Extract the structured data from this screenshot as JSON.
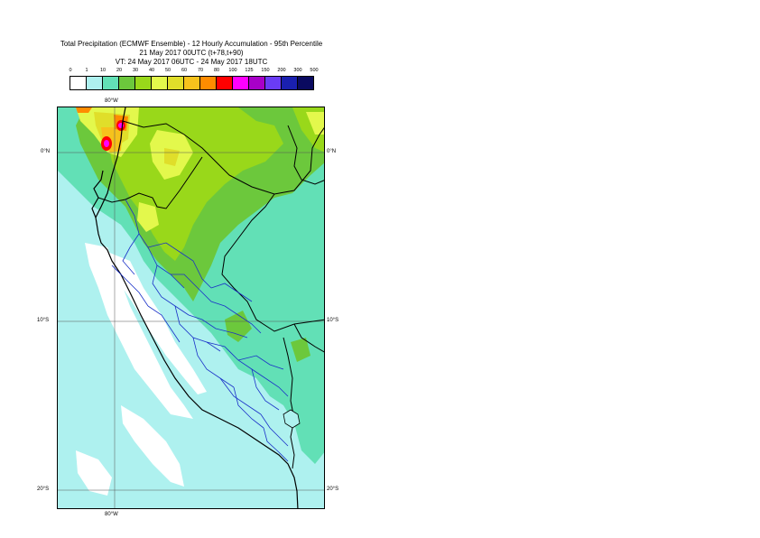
{
  "title": {
    "line1": "Total Precipitation (ECMWF Ensemble) - 12 Hourly Accumulation - 95th Percentile",
    "line2": "21 May 2017 00UTC (t+78,t+90)",
    "line3": "VT: 24 May 2017 06UTC - 24 May 2017 18UTC"
  },
  "legend": {
    "labels": [
      "0",
      "1",
      "10",
      "20",
      "30",
      "40",
      "50",
      "60",
      "70",
      "80",
      "100",
      "125",
      "150",
      "200",
      "300",
      "500"
    ],
    "colors": [
      "#ffffff",
      "#aef1ef",
      "#62e0b6",
      "#6cc83c",
      "#99d81a",
      "#e3f84c",
      "#e0de2a",
      "#f6c21c",
      "#ff8c00",
      "#ff0000",
      "#ff00ff",
      "#a800c8",
      "#6a3cf5",
      "#1a20b0",
      "#0a0a60"
    ]
  },
  "axes": {
    "lon_top": "80°W",
    "lon_bottom": "80°W",
    "lat_labels": [
      {
        "left": "0°N",
        "right": "0°N"
      },
      {
        "left": "10°S",
        "right": "10°S"
      },
      {
        "left": "20°S",
        "right": "20°S"
      }
    ]
  }
}
